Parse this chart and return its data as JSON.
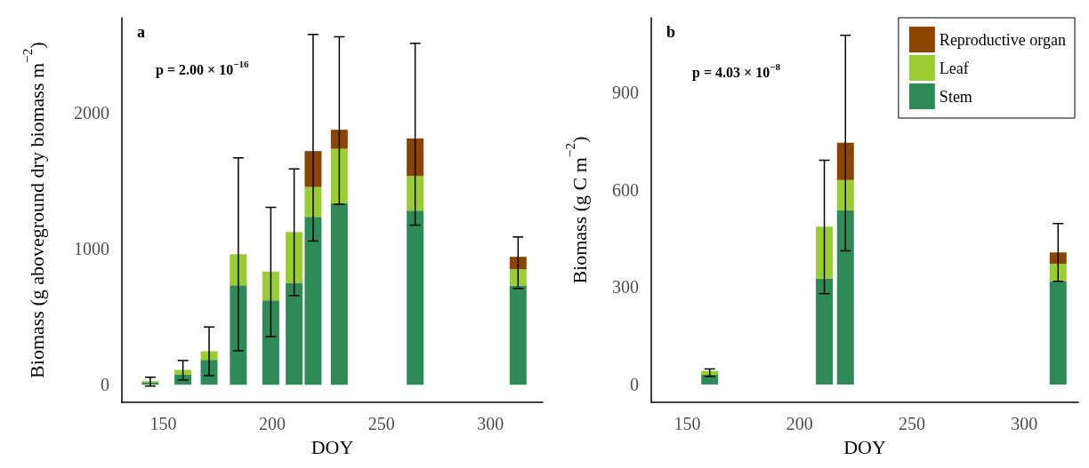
{
  "chart_data": [
    {
      "type": "bar",
      "title": "a",
      "xlabel": "DOY",
      "ylabel": "Biomass (g aboveground dry biomass m$^{−2}$)",
      "annotations": [
        "p = 2.00 × 10$^{−16}$"
      ],
      "stacked": true,
      "x": [
        144,
        159,
        171,
        184.4,
        199.3,
        210,
        218.7,
        230.7,
        265.5,
        312.7
      ],
      "xlim": [
        131,
        324
      ],
      "xticks": [
        150,
        200,
        250,
        300
      ],
      "ylim": [
        -130,
        2700
      ],
      "yticks": [
        0,
        1000,
        2000
      ],
      "grid": false,
      "legend": false,
      "series": [
        {
          "color": "#2e8b57",
          "values": [
            15,
            74,
            183,
            732,
            621,
            750,
            1235,
            1335,
            1281,
            730
          ],
          "errors": [
            [
              -10,
              55
            ],
            [
              35,
              178
            ],
            [
              67,
              425
            ],
            [
              250,
              1669
            ],
            [
              353,
              1305
            ],
            [
              656,
              1588
            ],
            [
              1057,
              2577
            ],
            [
              1327,
              2560
            ],
            [
              1174,
              2512
            ],
            [
              708,
              1087
            ]
          ]
        },
        {
          "color": "#9acd32",
          "values": [
            12,
            35,
            63,
            229,
            211,
            374,
            220,
            401,
            255,
            120
          ]
        },
        {
          "color": "#8b4500",
          "values": [
            null,
            null,
            null,
            null,
            null,
            null,
            264,
            140,
            276,
            91
          ]
        }
      ]
    },
    {
      "type": "bar",
      "title": "b",
      "xlabel": "DOY",
      "ylabel": "Biomass (g C m$^{−2}$)",
      "annotations": [
        "p = 4.03 × 10$^{−8}$"
      ],
      "stacked": true,
      "x": [
        160,
        211,
        220.4,
        315
      ],
      "xlim": [
        134,
        324
      ],
      "xticks": [
        150,
        200,
        250,
        300
      ],
      "ylim": [
        -55,
        1130
      ],
      "yticks": [
        0,
        300,
        600,
        900
      ],
      "grid": false,
      "legend": "top right",
      "series": [
        {
          "name": "Stem",
          "color": "#2e8b57",
          "values": [
            30,
            327,
            536,
            319
          ],
          "errors": [
            [
              25,
              48
            ],
            [
              280,
              691
            ],
            [
              412,
              1076
            ],
            [
              318,
              496
            ]
          ]
        },
        {
          "name": "Leaf",
          "color": "#9acd32",
          "values": [
            12,
            159,
            94,
            53
          ]
        },
        {
          "name": "Reproductive organ",
          "color": "#8b4500",
          "values": [
            null,
            null,
            115,
            35
          ]
        }
      ]
    }
  ]
}
